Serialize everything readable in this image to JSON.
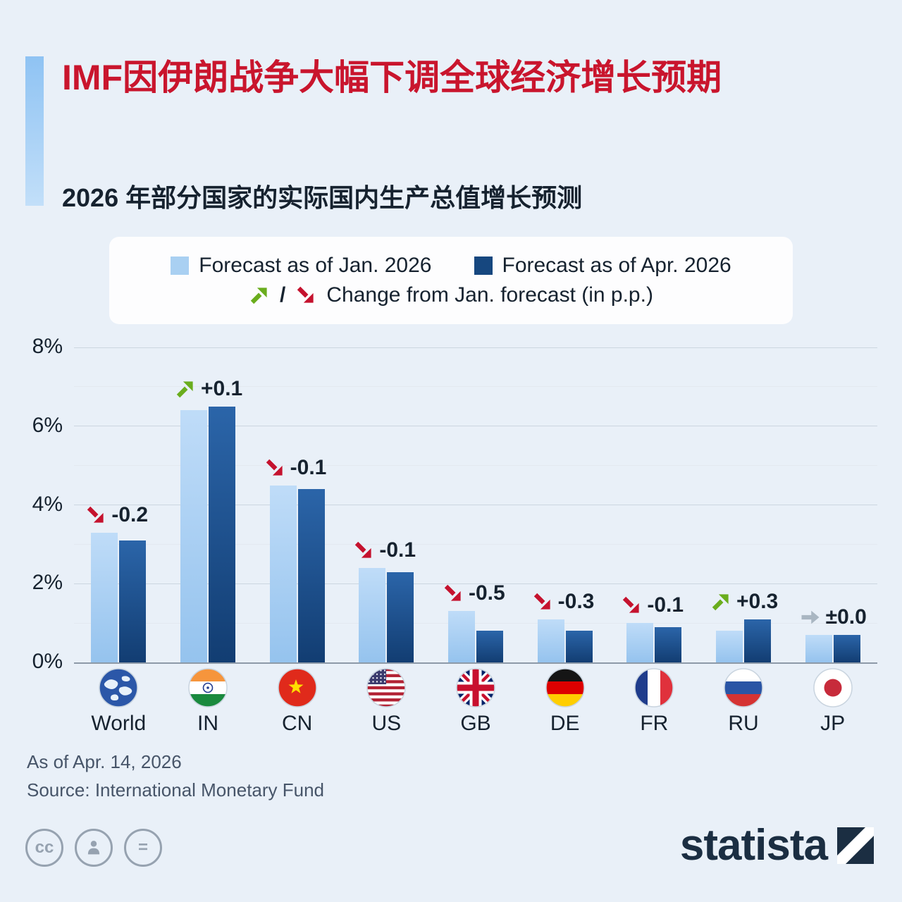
{
  "title": "IMF因伊朗战争大幅下调全球经济增长预期",
  "subtitle": "2026 年部分国家的实际国内生产总值增长预测",
  "legend": {
    "jan": "Forecast as of Jan. 2026",
    "apr": "Forecast as of Apr. 2026",
    "slash": "/",
    "change": "Change from Jan. forecast (in p.p.)"
  },
  "chart_data": {
    "type": "bar",
    "categories": [
      {
        "label": "World",
        "flag": "world"
      },
      {
        "label": "IN",
        "flag": "india"
      },
      {
        "label": "CN",
        "flag": "china"
      },
      {
        "label": "US",
        "flag": "usa"
      },
      {
        "label": "GB",
        "flag": "uk"
      },
      {
        "label": "DE",
        "flag": "germany"
      },
      {
        "label": "FR",
        "flag": "france"
      },
      {
        "label": "RU",
        "flag": "russia"
      },
      {
        "label": "JP",
        "flag": "japan"
      }
    ],
    "series": [
      {
        "name": "Forecast as of Jan. 2026",
        "values": [
          3.3,
          6.4,
          4.5,
          2.4,
          1.3,
          1.1,
          1.0,
          0.8,
          0.7
        ]
      },
      {
        "name": "Forecast as of Apr. 2026",
        "values": [
          3.1,
          6.5,
          4.4,
          2.3,
          0.8,
          0.8,
          0.9,
          1.1,
          0.7
        ]
      }
    ],
    "changes": [
      {
        "text": "-0.2",
        "direction": "down"
      },
      {
        "text": "+0.1",
        "direction": "up"
      },
      {
        "text": "-0.1",
        "direction": "down"
      },
      {
        "text": "-0.1",
        "direction": "down"
      },
      {
        "text": "-0.5",
        "direction": "down"
      },
      {
        "text": "-0.3",
        "direction": "down"
      },
      {
        "text": "-0.1",
        "direction": "down"
      },
      {
        "text": "+0.3",
        "direction": "up"
      },
      {
        "text": "±0.0",
        "direction": "flat"
      }
    ],
    "ylim": [
      0,
      8
    ],
    "yticks": [
      "0%",
      "2%",
      "4%",
      "6%",
      "8%"
    ],
    "grid": true,
    "legend_position": "top"
  },
  "footer": {
    "as_of": "As of Apr. 14, 2026",
    "source": "Source: International Monetary Fund",
    "brand": "statista",
    "cc_label": "cc",
    "nd_label": "="
  },
  "colors": {
    "title": "#c9152d",
    "bar_jan": "#a9d0f2",
    "bar_apr": "#16477f",
    "arrow_up": "#6aad1d",
    "arrow_down": "#c5122e",
    "arrow_flat": "#a9b6c2",
    "background": "#e9f0f8"
  }
}
